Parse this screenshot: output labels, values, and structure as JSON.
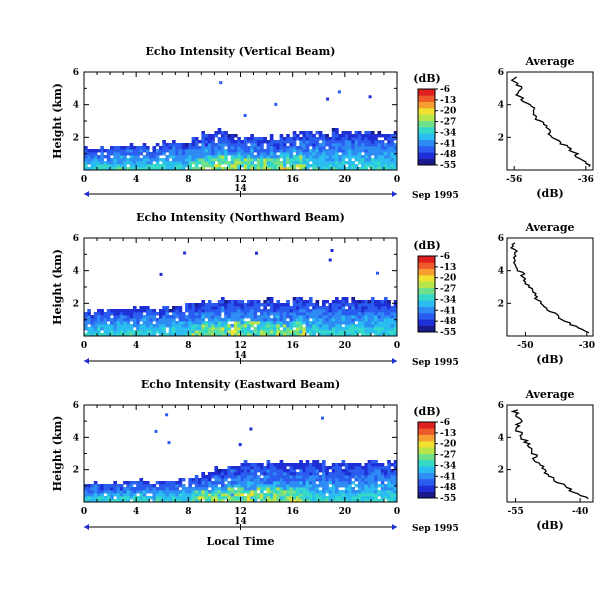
{
  "colors": {
    "colormap": [
      "#1a1a8c",
      "#1f2fd6",
      "#2b5cf0",
      "#2f8cf5",
      "#2bbcf0",
      "#35d9c8",
      "#6fe08a",
      "#b8e64a",
      "#f0e030",
      "#f5a030",
      "#ee5a2a",
      "#e02020"
    ]
  },
  "shared": {
    "time_label": "Local Time",
    "date_label": "Sep 1995",
    "day_label": "14",
    "colorbar_unit": "(dB)",
    "colorbar_ticks": [
      "-6",
      "-13",
      "-20",
      "-27",
      "-34",
      "-41",
      "-48",
      "-55"
    ],
    "profile_title": "Average",
    "profile_xlabel": "(dB)"
  },
  "chart_data": [
    {
      "type": "heatmap",
      "title": "Echo Intensity (Vertical Beam)",
      "xlabel": "",
      "ylabel": "Height (km)",
      "x_ticks": [
        "0",
        "4",
        "8",
        "12",
        "16",
        "20",
        "0"
      ],
      "xlim": [
        0,
        24
      ],
      "y_ticks": [
        "2",
        "4",
        "6"
      ],
      "ylim": [
        0,
        6
      ],
      "layer_top_km": [
        1.4,
        1.5,
        1.6,
        1.6,
        1.7,
        1.6,
        1.8,
        1.9,
        2.0,
        2.3,
        2.6,
        2.4,
        2.2,
        2.0,
        2.1,
        2.3,
        2.4,
        2.4,
        2.4,
        2.5,
        2.4,
        2.4,
        2.5,
        2.4
      ],
      "colorbar": {
        "range": [
          -55,
          -6
        ]
      },
      "profile": {
        "title": "Average",
        "xlabel": "(dB)",
        "x_ticks": [
          "-56",
          "-36"
        ],
        "xlim": [
          -58,
          -34
        ],
        "y_ticks": [
          "2",
          "4",
          "6"
        ],
        "ylim": [
          0,
          6
        ],
        "height_km": [
          0.2,
          0.6,
          1.0,
          1.4,
          1.8,
          2.2,
          2.6,
          3.0,
          3.4,
          3.8,
          4.2,
          4.6,
          5.0,
          5.4,
          5.8
        ],
        "values_db": [
          -35,
          -37,
          -39,
          -41,
          -44,
          -46,
          -47,
          -49,
          -51,
          -51,
          -53,
          -55,
          -54,
          -56,
          -56
        ]
      }
    },
    {
      "type": "heatmap",
      "title": "Echo Intensity (Northward Beam)",
      "xlabel": "",
      "ylabel": "Height (km)",
      "x_ticks": [
        "0",
        "4",
        "8",
        "12",
        "16",
        "20",
        "0"
      ],
      "xlim": [
        0,
        24
      ],
      "y_ticks": [
        "2",
        "4",
        "6"
      ],
      "ylim": [
        0,
        6
      ],
      "layer_top_km": [
        1.6,
        1.7,
        1.7,
        1.8,
        1.8,
        1.8,
        1.9,
        2.0,
        2.1,
        2.2,
        2.3,
        2.3,
        2.3,
        2.3,
        2.3,
        2.2,
        2.4,
        2.4,
        2.3,
        2.4,
        2.4,
        2.3,
        2.4,
        2.3
      ],
      "colorbar": {
        "range": [
          -55,
          -6
        ]
      },
      "profile": {
        "title": "Average",
        "xlabel": "(dB)",
        "x_ticks": [
          "-50",
          "-30"
        ],
        "xlim": [
          -56,
          -28
        ],
        "y_ticks": [
          "2",
          "4",
          "6"
        ],
        "ylim": [
          0,
          6
        ],
        "height_km": [
          0.2,
          0.6,
          1.0,
          1.4,
          1.8,
          2.2,
          2.6,
          3.0,
          3.4,
          3.8,
          4.2,
          4.6,
          5.0,
          5.4,
          5.8
        ],
        "values_db": [
          -30,
          -34,
          -38,
          -41,
          -44,
          -46,
          -47,
          -49,
          -50,
          -51,
          -53,
          -54,
          -53,
          -54,
          -54
        ]
      }
    },
    {
      "type": "heatmap",
      "title": "Echo Intensity (Eastward Beam)",
      "xlabel": "Local Time",
      "ylabel": "Height (km)",
      "x_ticks": [
        "0",
        "4",
        "8",
        "12",
        "16",
        "20",
        "0"
      ],
      "xlim": [
        0,
        24
      ],
      "y_ticks": [
        "2",
        "4",
        "6"
      ],
      "ylim": [
        0,
        6
      ],
      "layer_top_km": [
        1.3,
        1.3,
        1.3,
        1.4,
        1.4,
        1.3,
        1.3,
        1.4,
        1.6,
        1.9,
        2.2,
        2.4,
        2.5,
        2.5,
        2.6,
        2.5,
        2.6,
        2.6,
        2.5,
        2.6,
        2.5,
        2.5,
        2.6,
        2.5
      ],
      "colorbar": {
        "range": [
          -55,
          -6
        ]
      },
      "profile": {
        "title": "Average",
        "xlabel": "(dB)",
        "x_ticks": [
          "-55",
          "-40"
        ],
        "xlim": [
          -57,
          -37
        ],
        "y_ticks": [
          "2",
          "4",
          "6"
        ],
        "ylim": [
          0,
          6
        ],
        "height_km": [
          0.2,
          0.6,
          1.0,
          1.4,
          1.8,
          2.2,
          2.6,
          3.0,
          3.4,
          3.8,
          4.2,
          4.6,
          5.0,
          5.4,
          5.8
        ],
        "values_db": [
          -38,
          -41,
          -44,
          -46,
          -48,
          -49,
          -50,
          -51,
          -52,
          -53,
          -54,
          -55,
          -54,
          -55,
          -55
        ]
      }
    }
  ]
}
